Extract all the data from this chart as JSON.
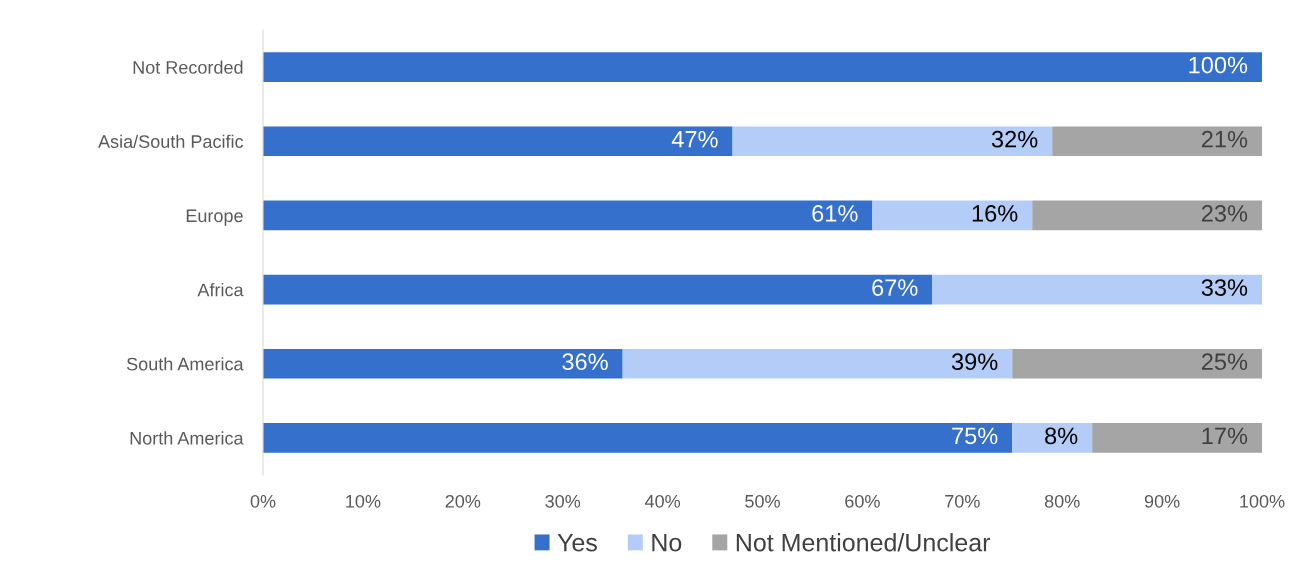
{
  "chart_data": {
    "type": "bar",
    "orientation": "horizontal",
    "stacked": true,
    "legend": "bottom",
    "grid": false,
    "categories": [
      "Not Recorded",
      "Asia/South Pacific",
      "Europe",
      "Africa",
      "South America",
      "North America"
    ],
    "series": [
      {
        "name": "Yes",
        "color": "#3470cc",
        "values": [
          100,
          47,
          61,
          67,
          36,
          75
        ],
        "value_labels": [
          "100%",
          "47%",
          "61%",
          "67%",
          "36%",
          "75%"
        ]
      },
      {
        "name": "No",
        "color": "#b4cdf8",
        "values": [
          null,
          32,
          16,
          33,
          39,
          8
        ],
        "value_labels": [
          null,
          "32%",
          "16%",
          "33%",
          "39%",
          "8%"
        ]
      },
      {
        "name": "Not Mentioned/Unclear",
        "color": "#a5a5a5",
        "values": [
          null,
          21,
          23,
          null,
          25,
          17
        ],
        "value_labels": [
          null,
          "21%",
          "23%",
          null,
          "25%",
          "17%"
        ]
      }
    ],
    "xlim": [
      0,
      100
    ],
    "xticks": [
      {
        "value": 0,
        "label": "0%"
      },
      {
        "value": 10,
        "label": "10%"
      },
      {
        "value": 20,
        "label": "20%"
      },
      {
        "value": 30,
        "label": "30%"
      },
      {
        "value": 40,
        "label": "40%"
      },
      {
        "value": 50,
        "label": "50%"
      },
      {
        "value": 60,
        "label": "60%"
      },
      {
        "value": 70,
        "label": "70%"
      },
      {
        "value": 80,
        "label": "80%"
      },
      {
        "value": 90,
        "label": "90%"
      },
      {
        "value": 100,
        "label": "100%"
      }
    ]
  }
}
